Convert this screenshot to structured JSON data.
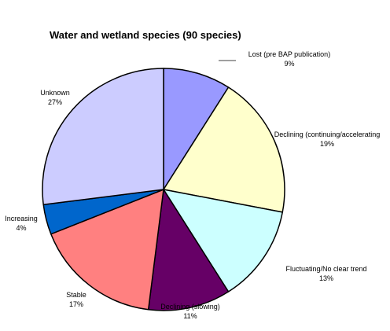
{
  "chart_data": {
    "type": "pie",
    "title": "Water and wetland species (90 species)",
    "slices": [
      {
        "label": "Lost (pre BAP publication)",
        "percent_label": "9%",
        "value": 9,
        "color": "#9999ff"
      },
      {
        "label": "Declining (continuing/accelerating",
        "percent_label": "19%",
        "value": 19,
        "color": "#ffffcc"
      },
      {
        "label": "Fluctuating/No clear trend",
        "percent_label": "13%",
        "value": 13,
        "color": "#ccffff"
      },
      {
        "label": "Declining (slowing)",
        "percent_label": "11%",
        "value": 11,
        "color": "#660066"
      },
      {
        "label": "Stable",
        "percent_label": "17%",
        "value": 17,
        "color": "#ff8080"
      },
      {
        "label": "Increasing",
        "percent_label": "4%",
        "value": 4,
        "color": "#0066cc"
      },
      {
        "label": "Unknown",
        "percent_label": "27%",
        "value": 27,
        "color": "#ccccff"
      }
    ],
    "start_angle": "12 o'clock",
    "direction": "clockwise",
    "legend": "none",
    "border_color": "#000000"
  }
}
